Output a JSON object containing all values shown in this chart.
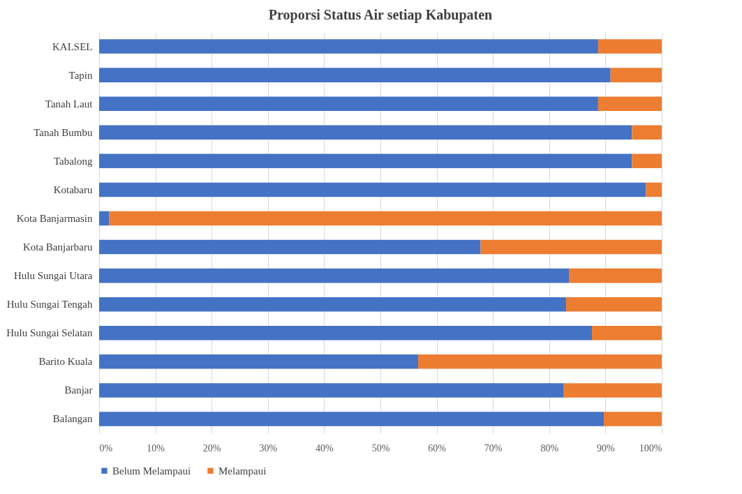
{
  "chart_data": {
    "type": "bar",
    "orientation": "horizontal",
    "stacked": true,
    "title": "Proporsi Status Air setiap Kabupaten",
    "categories": [
      "KALSEL",
      "Tapin",
      "Tanah Laut",
      "Tanah Bumbu",
      "Tabalong",
      "Kotabaru",
      "Kota Banjarmasin",
      "Kota Banjarbaru",
      "Hulu Sungai Utara",
      "Hulu Sungai Tengah",
      "Hulu Sungai Selatan",
      "Barito Kuala",
      "Banjar",
      "Balangan"
    ],
    "series": [
      {
        "name": "Belum Melampaui",
        "color": "#4472c4",
        "values": [
          88.7,
          90.9,
          88.7,
          94.7,
          94.7,
          97.2,
          1.8,
          67.8,
          83.5,
          83.0,
          87.6,
          56.7,
          82.6,
          89.7
        ]
      },
      {
        "name": "Melampaui",
        "color": "#ed7d31",
        "values": [
          11.3,
          9.1,
          11.3,
          5.3,
          5.3,
          2.8,
          98.2,
          32.2,
          16.5,
          17.0,
          12.4,
          43.3,
          17.4,
          10.3
        ]
      }
    ],
    "xlim": [
      0,
      100
    ],
    "xticks": [
      {
        "value": 0,
        "label": "0%"
      },
      {
        "value": 10,
        "label": "10%"
      },
      {
        "value": 20,
        "label": "20%"
      },
      {
        "value": 30,
        "label": "30%"
      },
      {
        "value": 40,
        "label": "40%"
      },
      {
        "value": 50,
        "label": "50%"
      },
      {
        "value": 60,
        "label": "60%"
      },
      {
        "value": 70,
        "label": "70%"
      },
      {
        "value": 80,
        "label": "80%"
      },
      {
        "value": 90,
        "label": "90%"
      },
      {
        "value": 100,
        "label": "100%"
      }
    ],
    "grid": true,
    "legend": "bottom"
  }
}
